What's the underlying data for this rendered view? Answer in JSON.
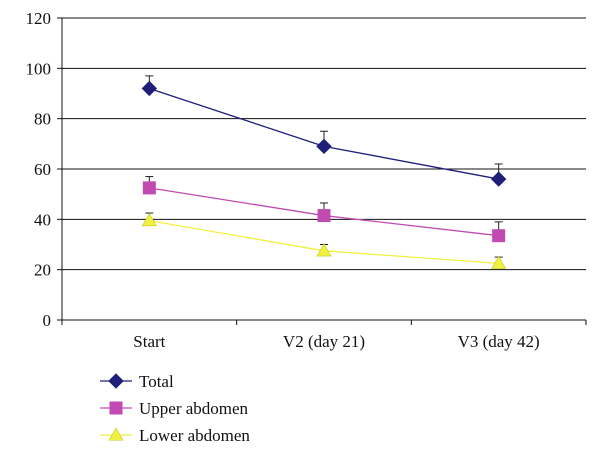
{
  "chart_data": {
    "type": "line",
    "title": "",
    "xlabel": "",
    "ylabel": "",
    "categories": [
      "Start",
      "V2 (day 21)",
      "V3 (day 42)"
    ],
    "ylim": [
      0,
      120
    ],
    "yticks": [
      0,
      20,
      40,
      60,
      80,
      100,
      120
    ],
    "grid": "horizontal",
    "legend_position": "bottom-left",
    "series": [
      {
        "name": "Total",
        "values": [
          92,
          69,
          56
        ],
        "errors": [
          5,
          6,
          6
        ],
        "color": "#1f1f7a",
        "marker": "diamond"
      },
      {
        "name": "Upper abdomen",
        "values": [
          52.5,
          41.5,
          33.5
        ],
        "errors": [
          4.5,
          5,
          5.5
        ],
        "color": "#c04ab0",
        "marker": "square"
      },
      {
        "name": "Lower abdomen",
        "values": [
          39.5,
          27.5,
          22.5
        ],
        "errors": [
          3,
          2.5,
          2.5
        ],
        "color": "#f0f040",
        "marker": "triangle"
      }
    ]
  }
}
